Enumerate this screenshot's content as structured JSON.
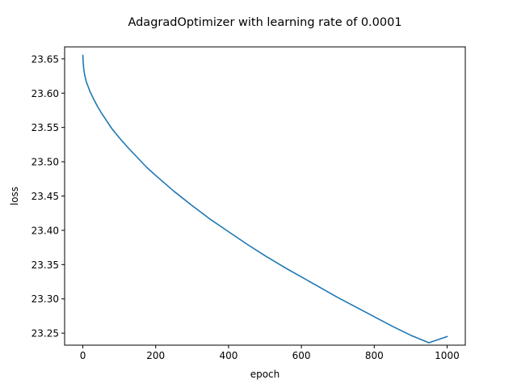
{
  "chart_data": {
    "type": "line",
    "title": "AdagradOptimizer with learning rate of 0.0001",
    "xlabel": "epoch",
    "ylabel": "loss",
    "xlim": [
      -50,
      1050
    ],
    "ylim": [
      23.2325,
      23.6675
    ],
    "xticks": [
      0,
      200,
      400,
      600,
      800,
      1000
    ],
    "yticks": [
      23.25,
      23.3,
      23.35,
      23.4,
      23.45,
      23.5,
      23.55,
      23.6,
      23.65
    ],
    "ytick_labels": [
      "23.25",
      "23.30",
      "23.35",
      "23.40",
      "23.45",
      "23.50",
      "23.55",
      "23.60",
      "23.65"
    ],
    "grid": false,
    "series": [
      {
        "color": "#1f77b4",
        "x": [
          0,
          1,
          2,
          3,
          5,
          8,
          10,
          15,
          20,
          30,
          40,
          50,
          60,
          80,
          100,
          125,
          150,
          175,
          200,
          250,
          300,
          350,
          400,
          450,
          500,
          550,
          600,
          650,
          700,
          750,
          800,
          850,
          900,
          950,
          1000
        ],
        "y": [
          23.655,
          23.645,
          23.638,
          23.633,
          23.627,
          23.62,
          23.616,
          23.609,
          23.602,
          23.591,
          23.581,
          23.572,
          23.564,
          23.548,
          23.535,
          23.52,
          23.506,
          23.492,
          23.48,
          23.457,
          23.436,
          23.416,
          23.398,
          23.38,
          23.363,
          23.347,
          23.332,
          23.317,
          23.302,
          23.288,
          23.274,
          23.26,
          23.247,
          23.236,
          23.245
        ]
      }
    ]
  }
}
